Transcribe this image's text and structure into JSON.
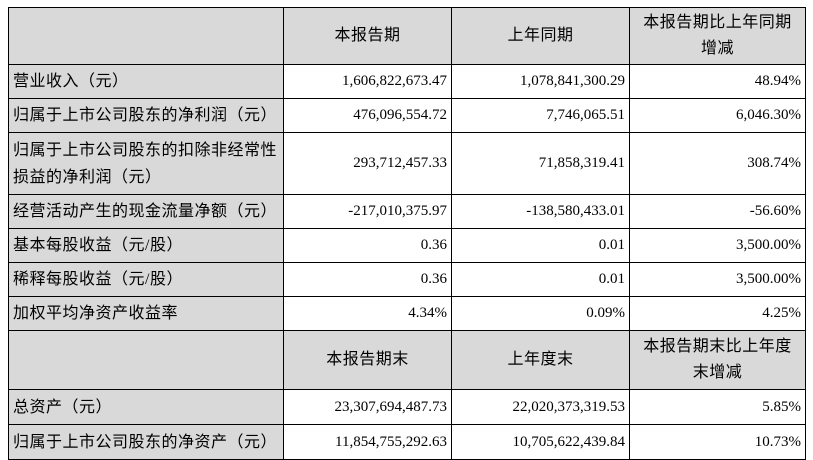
{
  "colors": {
    "header_and_label_bg": "#d9d9d9",
    "value_cell_bg": "#ffffff",
    "border": "#000000",
    "text": "#000000"
  },
  "table": {
    "section1": {
      "header": {
        "corner": "",
        "current": "本报告期",
        "prior": "上年同期",
        "change": "本报告期比上年同期增减"
      },
      "rows": [
        {
          "label": "营业收入（元）",
          "current": "1,606,822,673.47",
          "prior": "1,078,841,300.29",
          "change": "48.94%"
        },
        {
          "label": "归属于上市公司股东的净利润（元）",
          "current": "476,096,554.72",
          "prior": "7,746,065.51",
          "change": "6,046.30%"
        },
        {
          "label": "归属于上市公司股东的扣除非经常性损益的净利润（元）",
          "current": "293,712,457.33",
          "prior": "71,858,319.41",
          "change": "308.74%"
        },
        {
          "label": "经营活动产生的现金流量净额（元）",
          "current": "-217,010,375.97",
          "prior": "-138,580,433.01",
          "change": "-56.60%"
        },
        {
          "label": "基本每股收益（元/股）",
          "current": "0.36",
          "prior": "0.01",
          "change": "3,500.00%"
        },
        {
          "label": "稀释每股收益（元/股）",
          "current": "0.36",
          "prior": "0.01",
          "change": "3,500.00%"
        },
        {
          "label": "加权平均净资产收益率",
          "current": "4.34%",
          "prior": "0.09%",
          "change": "4.25%"
        }
      ]
    },
    "section2": {
      "header": {
        "corner": "",
        "current": "本报告期末",
        "prior": "上年度末",
        "change": "本报告期末比上年度末增减"
      },
      "rows": [
        {
          "label": "总资产（元）",
          "current": "23,307,694,487.73",
          "prior": "22,020,373,319.53",
          "change": "5.85%"
        },
        {
          "label": "归属于上市公司股东的净资产（元）",
          "current": "11,854,755,292.63",
          "prior": "10,705,622,439.84",
          "change": "10.73%"
        }
      ]
    }
  }
}
